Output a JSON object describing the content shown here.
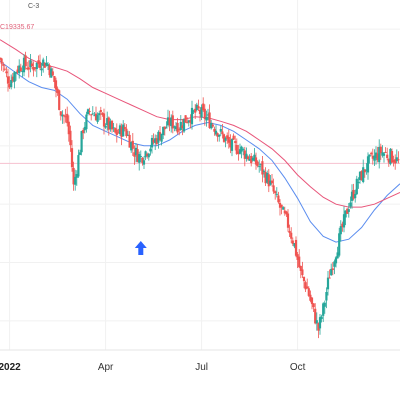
{
  "legend": {
    "fragment": "C-3",
    "value_text": "C19335.67"
  },
  "colors": {
    "up": "#26a69a",
    "down": "#ef5350",
    "ma_fast": "#5b8def",
    "ma_slow": "#e8557a",
    "price_line": "#f6c1cf",
    "grid": "#f1f1f1",
    "arrow": "#2962ff"
  },
  "icons": {
    "marker": "up-arrow-icon"
  },
  "chart_data": {
    "type": "candlestick",
    "title": "",
    "xlabel": "",
    "ylabel": "",
    "x_ticks": [
      "2022",
      "Apr",
      "Jul",
      "Oct"
    ],
    "x_tick_months": [
      0,
      3,
      6,
      9
    ],
    "xlim_months": [
      -0.3,
      12.2
    ],
    "ylim": [
      15000,
      21000
    ],
    "horizontal_line": 18200,
    "grid": true,
    "arrow_marker_month": 4.1,
    "close_path": [
      [
        -0.3,
        20000
      ],
      [
        -0.1,
        19700
      ],
      [
        0.0,
        19600
      ],
      [
        0.2,
        19800
      ],
      [
        0.4,
        19900
      ],
      [
        0.7,
        19850
      ],
      [
        1.0,
        19950
      ],
      [
        1.2,
        19900
      ],
      [
        1.4,
        19600
      ],
      [
        1.6,
        19100
      ],
      [
        1.8,
        18900
      ],
      [
        1.9,
        18500
      ],
      [
        2.0,
        17800
      ],
      [
        2.15,
        18300
      ],
      [
        2.3,
        18800
      ],
      [
        2.5,
        19100
      ],
      [
        2.8,
        19000
      ],
      [
        3.0,
        18900
      ],
      [
        3.3,
        18700
      ],
      [
        3.6,
        18800
      ],
      [
        3.9,
        18400
      ],
      [
        4.1,
        18300
      ],
      [
        4.4,
        18500
      ],
      [
        4.7,
        18700
      ],
      [
        5.0,
        18900
      ],
      [
        5.3,
        18850
      ],
      [
        5.6,
        19000
      ],
      [
        5.9,
        19100
      ],
      [
        6.1,
        19000
      ],
      [
        6.3,
        18900
      ],
      [
        6.6,
        18700
      ],
      [
        6.9,
        18500
      ],
      [
        7.2,
        18450
      ],
      [
        7.5,
        18300
      ],
      [
        7.8,
        18150
      ],
      [
        8.1,
        17900
      ],
      [
        8.4,
        17500
      ],
      [
        8.7,
        17150
      ],
      [
        8.9,
        16800
      ],
      [
        9.1,
        16300
      ],
      [
        9.3,
        16050
      ],
      [
        9.5,
        15650
      ],
      [
        9.65,
        15350
      ],
      [
        9.8,
        15700
      ],
      [
        10.0,
        16300
      ],
      [
        10.3,
        16900
      ],
      [
        10.6,
        17500
      ],
      [
        10.9,
        17900
      ],
      [
        11.2,
        18200
      ],
      [
        11.6,
        18400
      ],
      [
        12.0,
        18300
      ],
      [
        12.2,
        18200
      ]
    ],
    "series": [
      {
        "name": "",
        "type": "line",
        "points": [
          [
            -0.3,
            19950
          ],
          [
            0.2,
            19750
          ],
          [
            0.6,
            19600
          ],
          [
            1.0,
            19500
          ],
          [
            1.4,
            19450
          ],
          [
            1.8,
            19300
          ],
          [
            2.2,
            19050
          ],
          [
            2.6,
            18850
          ],
          [
            3.0,
            18750
          ],
          [
            3.4,
            18650
          ],
          [
            3.8,
            18550
          ],
          [
            4.2,
            18500
          ],
          [
            4.6,
            18500
          ],
          [
            5.0,
            18600
          ],
          [
            5.4,
            18750
          ],
          [
            5.8,
            18850
          ],
          [
            6.2,
            18900
          ],
          [
            6.6,
            18850
          ],
          [
            7.0,
            18750
          ],
          [
            7.4,
            18600
          ],
          [
            7.8,
            18450
          ],
          [
            8.2,
            18250
          ],
          [
            8.6,
            17950
          ],
          [
            9.0,
            17600
          ],
          [
            9.4,
            17200
          ],
          [
            9.8,
            16950
          ],
          [
            10.2,
            16850
          ],
          [
            10.6,
            16900
          ],
          [
            11.0,
            17100
          ],
          [
            11.4,
            17400
          ],
          [
            11.8,
            17650
          ],
          [
            12.2,
            17850
          ]
        ]
      },
      {
        "name": "",
        "type": "line",
        "points": [
          [
            -0.3,
            20320
          ],
          [
            0.2,
            20150
          ],
          [
            0.6,
            20000
          ],
          [
            1.0,
            19900
          ],
          [
            1.4,
            19850
          ],
          [
            1.8,
            19780
          ],
          [
            2.2,
            19650
          ],
          [
            2.6,
            19500
          ],
          [
            3.0,
            19400
          ],
          [
            3.4,
            19300
          ],
          [
            3.8,
            19200
          ],
          [
            4.2,
            19100
          ],
          [
            4.6,
            19000
          ],
          [
            5.0,
            18950
          ],
          [
            5.4,
            18950
          ],
          [
            5.8,
            19000
          ],
          [
            6.2,
            18980
          ],
          [
            6.6,
            18920
          ],
          [
            7.0,
            18850
          ],
          [
            7.4,
            18750
          ],
          [
            7.8,
            18600
          ],
          [
            8.2,
            18450
          ],
          [
            8.6,
            18250
          ],
          [
            9.0,
            18000
          ],
          [
            9.4,
            17800
          ],
          [
            9.8,
            17620
          ],
          [
            10.2,
            17500
          ],
          [
            10.6,
            17450
          ],
          [
            11.0,
            17450
          ],
          [
            11.4,
            17500
          ],
          [
            11.8,
            17600
          ],
          [
            12.2,
            17700
          ]
        ]
      }
    ]
  }
}
